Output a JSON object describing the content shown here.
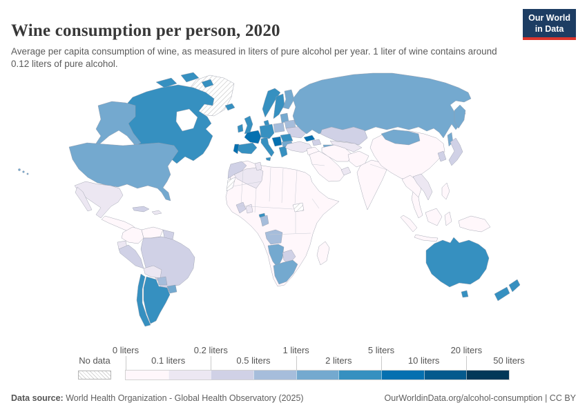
{
  "header": {
    "title": "Wine consumption per person, 2020",
    "subtitle": "Average per capita consumption of wine, as measured in liters of pure alcohol per year. 1 liter of wine contains around 0.12 liters of pure alcohol.",
    "logo": {
      "line1": "Our World",
      "line2": "in Data",
      "bg_color": "#1d3d63",
      "accent_color": "#dc352c"
    }
  },
  "legend": {
    "no_data_label": "No data",
    "tick_labels": [
      "0 liters",
      "0.1 liters",
      "0.2 liters",
      "0.5 liters",
      "1 liters",
      "2 liters",
      "5 liters",
      "10 liters",
      "20 liters",
      "50 liters"
    ],
    "bin_colors": [
      "#fff7fb",
      "#ece7f2",
      "#d0d1e6",
      "#a6bddb",
      "#74a9cf",
      "#3690c0",
      "#0570b0",
      "#045a8d",
      "#023858"
    ]
  },
  "footer": {
    "source_label": "Data source:",
    "source_text": " World Health Organization - Global Health Observatory (2025)",
    "link_text": "OurWorldinData.org/alcohol-consumption | CC BY"
  },
  "chart_data": {
    "type": "heatmap",
    "subtype": "choropleth-world-map",
    "title": "Wine consumption per person, 2020",
    "unit": "liters of pure alcohol per person per year",
    "bin_edges": [
      0,
      0.1,
      0.2,
      0.5,
      1,
      2,
      5,
      10,
      20,
      50
    ],
    "bin_colors": [
      "#fff7fb",
      "#ece7f2",
      "#d0d1e6",
      "#a6bddb",
      "#74a9cf",
      "#3690c0",
      "#0570b0",
      "#045a8d",
      "#023858"
    ],
    "no_data_pattern": "diagonal-hatch",
    "legend_position": "bottom",
    "countries_by_bin": {
      "no-data": [
        "Greenland",
        "Western Sahara",
        "South Sudan"
      ],
      "0-0.1 liters": [
        "China",
        "India",
        "Indonesia",
        "Madagascar",
        "most of Sub-Saharan Africa",
        "Saudi Arabia",
        "Iran",
        "Colombia",
        "Venezuela",
        "Central America",
        "Philippines",
        "Papua New Guinea",
        "Thailand",
        "Myanmar",
        "Pakistan",
        "Afghanistan"
      ],
      "0.1-0.2 liters": [
        "Mexico",
        "Bolivia",
        "Ecuador",
        "Turkey",
        "Algeria",
        "Tunisia",
        "Ghana",
        "Uzbekistan",
        "Vietnam",
        "Laos",
        "Haiti",
        "Gulf states"
      ],
      "0.2-0.5 liters": [
        "Brazil",
        "Peru",
        "Ukraine",
        "Kazakhstan",
        "Japan",
        "South Korea",
        "Morocco",
        "Botswana",
        "Cote d'Ivoire",
        "Cuba",
        "Azerbaijan",
        "Guyana"
      ],
      "0.5-1 liters": [
        "Poland",
        "Belarus",
        "Paraguay",
        "Angola",
        "Gabon"
      ],
      "1-2 liters": [
        "United States",
        "Russia",
        "Finland",
        "Uruguay",
        "South Africa",
        "Namibia",
        "Mongolia",
        "Turkmenistan",
        "Bulgaria",
        "Baltic states"
      ],
      "2-5 liters": [
        "Canada",
        "Australia",
        "New Zealand",
        "Argentina",
        "Chile",
        "Spain",
        "Italy",
        "United Kingdom",
        "Ireland",
        "Germany",
        "Norway",
        "Sweden",
        "Denmark",
        "Iceland",
        "Greece",
        "Romania",
        "Equatorial Guinea"
      ],
      "5-10 liters": [
        "France",
        "Portugal",
        "Georgia",
        "Croatia"
      ]
    }
  },
  "map": {
    "regions": {
      "greenland": "no-data",
      "canada": 5,
      "alaska": 4,
      "usa": 4,
      "mexico": 1,
      "central-america": 0,
      "cuba": 2,
      "hispaniola": 1,
      "colombia": 0,
      "venezuela": 0,
      "guyanas": 2,
      "ecuador": 1,
      "peru": 2,
      "brazil": 2,
      "bolivia": 1,
      "paraguay": 3,
      "uruguay": 4,
      "argentina": 5,
      "chile": 5,
      "iceland": 5,
      "norway": 5,
      "sweden": 5,
      "finland": 4,
      "denmark": 5,
      "uk": 5,
      "ireland": 5,
      "central-europe": 5,
      "france": 6,
      "spain": 5,
      "portugal": 6,
      "italy": 5,
      "poland": 3,
      "baltics": 4,
      "belarus": 3,
      "ukraine": 2,
      "west-balkans": 6,
      "romania": 5,
      "bulgaria": 4,
      "greece": 5,
      "russia": 4,
      "kazakhstan": 2,
      "central-asia": 1,
      "turkmenistan": 4,
      "georgia": 6,
      "azerbaijan": 2,
      "turkey": 1,
      "levant": 0,
      "arabia": 0,
      "gulf-states": 1,
      "iran": 0,
      "afghanistan-pakistan": 0,
      "india": 0,
      "china": 0,
      "mongolia": 4,
      "korea": 2,
      "japan": 2,
      "se-asia": 0,
      "vietnam-laos": 1,
      "thailand-malay": 0,
      "indonesia": 0,
      "philippines": 0,
      "new-guinea": 0,
      "africa": 0,
      "morocco": 2,
      "algeria": 1,
      "tunisia": 1,
      "western-sahara": "no-data",
      "cote-divoire": 2,
      "ghana": 1,
      "gabon": 3,
      "equatorial-guinea": 5,
      "south-sudan": "no-data",
      "angola": 3,
      "namibia": 4,
      "botswana": 2,
      "south-africa": 4,
      "madagascar": 0,
      "australia": 5,
      "new-zealand": 5
    }
  }
}
